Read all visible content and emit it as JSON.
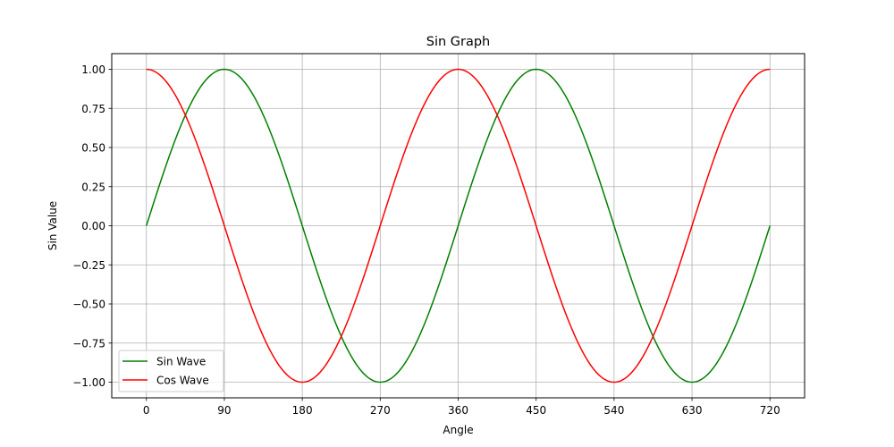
{
  "chart_data": {
    "type": "line",
    "title": "Sin Graph",
    "xlabel": "Angle",
    "ylabel": "Sin Value",
    "xlim": [
      -40,
      760
    ],
    "ylim": [
      -1.1,
      1.1
    ],
    "xticks": [
      0,
      90,
      180,
      270,
      360,
      450,
      540,
      630,
      720
    ],
    "yticks": [
      -1.0,
      -0.75,
      -0.5,
      -0.25,
      0.0,
      0.25,
      0.5,
      0.75,
      1.0
    ],
    "ytick_labels": [
      "−1.00",
      "−0.75",
      "−0.50",
      "−0.25",
      "0.00",
      "0.25",
      "0.50",
      "0.75",
      "1.00"
    ],
    "grid": true,
    "legend_position": "lower-left",
    "series": [
      {
        "name": "Sin Wave",
        "color": "#008000",
        "x": [
          0,
          30,
          60,
          90,
          120,
          150,
          180,
          210,
          240,
          270,
          300,
          330,
          360,
          390,
          420,
          450,
          480,
          510,
          540,
          570,
          600,
          630,
          660,
          690,
          720
        ],
        "y": [
          0.0,
          0.5,
          0.866,
          1.0,
          0.866,
          0.5,
          0.0,
          -0.5,
          -0.866,
          -1.0,
          -0.866,
          -0.5,
          0.0,
          0.5,
          0.866,
          1.0,
          0.866,
          0.5,
          0.0,
          -0.5,
          -0.866,
          -1.0,
          -0.866,
          -0.5,
          0.0
        ]
      },
      {
        "name": "Cos Wave",
        "color": "#ff0000",
        "x": [
          0,
          30,
          60,
          90,
          120,
          150,
          180,
          210,
          240,
          270,
          300,
          330,
          360,
          390,
          420,
          450,
          480,
          510,
          540,
          570,
          600,
          630,
          660,
          690,
          720
        ],
        "y": [
          1.0,
          0.866,
          0.5,
          0.0,
          -0.5,
          -0.866,
          -1.0,
          -0.866,
          -0.5,
          0.0,
          0.5,
          0.866,
          1.0,
          0.866,
          0.5,
          0.0,
          -0.5,
          -0.866,
          -1.0,
          -0.866,
          -0.5,
          0.0,
          0.5,
          0.866,
          1.0
        ]
      }
    ]
  }
}
